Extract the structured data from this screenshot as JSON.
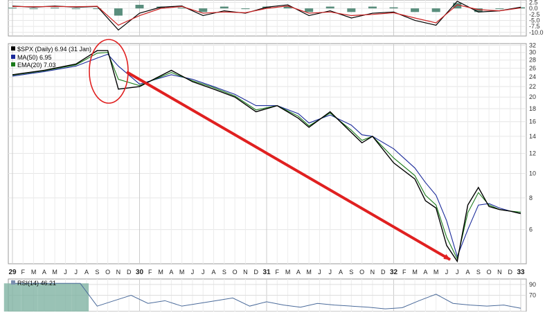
{
  "chart_data": [
    {
      "type": "line",
      "panel": "momentum-oscillator",
      "y_ticks": [
        "2.5",
        "0.0",
        "-2.5",
        "-5.0",
        "-7.5",
        "-10.0"
      ],
      "ylim": [
        -11.5,
        3.5
      ],
      "x": [
        "1929-01",
        "1929-03",
        "1929-05",
        "1929-07",
        "1929-09",
        "1929-11",
        "1930-01",
        "1930-03",
        "1930-05",
        "1930-07",
        "1930-09",
        "1930-11",
        "1931-01",
        "1931-03",
        "1931-05",
        "1931-07",
        "1931-09",
        "1931-11",
        "1932-01",
        "1932-03",
        "1932-05",
        "1932-07",
        "1932-09",
        "1932-11",
        "1933-01"
      ],
      "series": [
        {
          "color": "#000000",
          "values": [
            1.0,
            0.5,
            1.0,
            0.5,
            0.8,
            -9.0,
            -2.0,
            0.5,
            1.0,
            -3.0,
            -1.0,
            -2.0,
            0.5,
            1.5,
            -3.0,
            -1.0,
            -4.0,
            -2.0,
            -1.5,
            -5.0,
            -7.0,
            3.0,
            -1.5,
            -1.0,
            0.5
          ]
        },
        {
          "color": "#cc2222",
          "values": [
            0.8,
            0.7,
            0.8,
            0.7,
            0.9,
            -7.0,
            -3.0,
            0.0,
            0.8,
            -2.0,
            -1.5,
            -1.8,
            0.0,
            1.0,
            -2.0,
            -1.5,
            -3.0,
            -2.5,
            -1.8,
            -4.0,
            -6.0,
            1.5,
            -0.5,
            -1.0,
            0.2
          ]
        }
      ],
      "histogram_color": "#3d7a66"
    },
    {
      "type": "line",
      "panel": "price",
      "legend": [
        {
          "text": "$SPX (Daily) 6.94 (31 Jan)",
          "color": "#000000"
        },
        {
          "text": "MA(50) 6.95",
          "color": "#1a2a9a"
        },
        {
          "text": "EMA(20) 7.03",
          "color": "#1a7a1a"
        }
      ],
      "log_scale": true,
      "y_ticks": [
        32,
        30,
        28,
        26,
        24,
        22,
        20,
        18,
        16,
        14,
        12,
        10,
        8,
        6
      ],
      "ylim": [
        4.4,
        32.5
      ],
      "x_labels": [
        "29",
        "F",
        "M",
        "A",
        "M",
        "J",
        "J",
        "A",
        "S",
        "O",
        "N",
        "D",
        "30",
        "F",
        "M",
        "A",
        "M",
        "J",
        "J",
        "A",
        "S",
        "O",
        "N",
        "D",
        "31",
        "F",
        "M",
        "A",
        "M",
        "J",
        "J",
        "A",
        "S",
        "O",
        "N",
        "D",
        "32",
        "F",
        "M",
        "A",
        "M",
        "J",
        "J",
        "A",
        "S",
        "O",
        "N",
        "D",
        "33"
      ],
      "x": [
        "1929-01",
        "1929-04",
        "1929-07",
        "1929-09",
        "1929-10",
        "1929-11",
        "1930-01",
        "1930-04",
        "1930-06",
        "1930-08",
        "1930-10",
        "1930-12",
        "1931-02",
        "1931-04",
        "1931-05",
        "1931-07",
        "1931-09",
        "1931-10",
        "1931-11",
        "1932-01",
        "1932-03",
        "1932-04",
        "1932-05",
        "1932-06",
        "1932-07",
        "1932-08",
        "1932-09",
        "1932-10",
        "1932-11",
        "1932-12",
        "1933-01"
      ],
      "series": [
        {
          "name": "$SPX (Daily)",
          "color": "#000000",
          "values": [
            24.5,
            25.5,
            27,
            30.5,
            30.5,
            21.5,
            22,
            25.5,
            23,
            21.5,
            20,
            17.5,
            18.5,
            16.5,
            15.2,
            17.5,
            14.5,
            13.2,
            14,
            11,
            9.5,
            7.8,
            7.3,
            5.2,
            4.5,
            7.5,
            8.8,
            7.4,
            7.2,
            7.1,
            6.94
          ]
        },
        {
          "name": "MA(50)",
          "color": "#1a2a9a",
          "values": [
            24.2,
            25.2,
            26.5,
            28.5,
            29.5,
            26.5,
            22.5,
            24.5,
            23.5,
            22,
            20.5,
            18.5,
            18.5,
            17.2,
            15.8,
            17,
            15.5,
            14.2,
            14,
            12.5,
            10.5,
            9.2,
            8.2,
            6.5,
            4.7,
            6,
            7.5,
            7.6,
            7.3,
            7.1,
            6.95
          ]
        },
        {
          "name": "EMA(20)",
          "color": "#1a7a1a",
          "values": [
            24.4,
            25.4,
            26.8,
            29.8,
            30,
            23.5,
            22.2,
            25,
            23.2,
            21.8,
            20.2,
            17.8,
            18.5,
            16.8,
            15.4,
            17.3,
            14.8,
            13.5,
            14,
            11.5,
            9.8,
            8.2,
            7.5,
            5.6,
            4.6,
            7,
            8.4,
            7.5,
            7.2,
            7.1,
            7.03
          ]
        }
      ],
      "annotations": [
        {
          "type": "ellipse",
          "color": "#e02020",
          "x": "1929-10",
          "y_range": [
            21,
            32
          ]
        },
        {
          "type": "arrow",
          "color": "#e02020",
          "from": {
            "x": "1929-12",
            "y": 25
          },
          "to": {
            "x": "1932-07",
            "y": 4.5
          }
        }
      ]
    },
    {
      "type": "line",
      "panel": "rsi",
      "legend": [
        {
          "text": "RSI(14) 46.21",
          "color": "#000000"
        }
      ],
      "y_ticks": [
        90,
        70
      ],
      "ylim": [
        40,
        100
      ],
      "series": [
        {
          "name": "RSI(14)",
          "color": "#4a6a9a",
          "values": [
            92,
            92,
            92,
            92,
            92,
            50,
            60,
            70,
            55,
            60,
            50,
            55,
            60,
            65,
            50,
            58,
            52,
            48,
            55,
            52,
            50,
            48,
            45,
            47,
            60,
            72,
            55,
            52,
            50,
            52,
            46
          ]
        }
      ],
      "overbought_fill": "#7fb3a2"
    }
  ]
}
